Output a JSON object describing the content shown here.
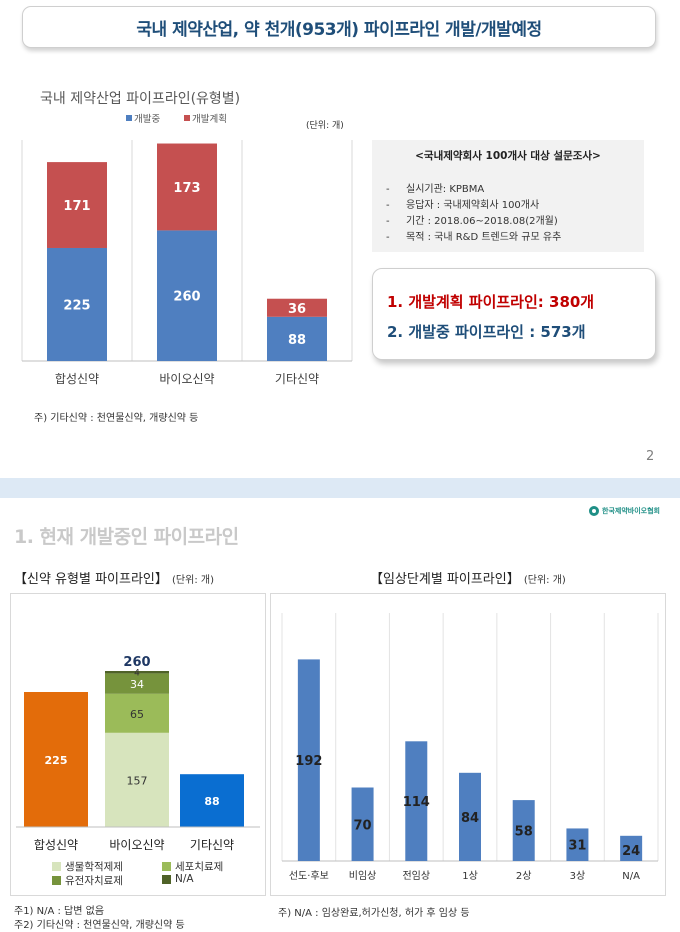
{
  "slide1": {
    "title": "국내 제약산업, 약 천개(953개) 파이프라인 개발/개발예정",
    "chart_title": "국내 제약산업 파이프라인(유형별)",
    "legend": [
      "개발중",
      "개발계획"
    ],
    "unit": "(단위: 개)",
    "note": "주) 기타신약 : 천연물신약, 개량신약 등",
    "survey": {
      "title": "<국내제약회사 100개사 대상 설문조사>",
      "items": [
        "실시기관: KPBMA",
        "응답자 : 국내제약회사 100개사",
        "기간 : 2018.06~2018.08(2개월)",
        "목적 : 국내 R&D 트렌드와 규모 유추"
      ],
      "dash": "-"
    },
    "summary": {
      "line1": "1. 개발계획 파이프라인: 380개",
      "line2": "2. 개발중 파이프라인 : 573개"
    },
    "page_number": "2"
  },
  "slide2": {
    "logo_text": "한국제약바이오협회",
    "section_heading": "1. 현재 개발중인 파이프라인",
    "left_title": "【신약 유형별 파이프라인】",
    "left_unit": "(단위: 개)",
    "right_title": "【임상단계별 파이프라인】",
    "right_unit": "(단위: 개)",
    "legend": [
      "생물학적제제",
      "세포치료제",
      "유전자치료제",
      "N/A"
    ],
    "footnotes": {
      "f1": "주1) N/A : 답변 없음",
      "f2": "주2) 기타신약 : 천연물신약, 개량신약 등",
      "f3": "주) N/A : 임상완료,허가신청, 허가 후 임상 등"
    }
  },
  "colors": {
    "blue": "#4f7fc0",
    "red": "#c55050",
    "orange": "#e36c0a",
    "bright_blue": "#0a6ed1",
    "bio_light": "#d7e4bd",
    "bio_mid": "#9bbb59",
    "bio_dark": "#76933c",
    "bio_darkest": "#4f6228",
    "title_navy": "#1f4e79",
    "summary_red": "#c00000"
  },
  "chart_data": [
    {
      "type": "bar",
      "stacked": true,
      "title": "국내 제약산업 파이프라인(유형별)",
      "categories": [
        "합성신약",
        "바이오신약",
        "기타신약"
      ],
      "series": [
        {
          "name": "개발중",
          "values": [
            225,
            260,
            88
          ]
        },
        {
          "name": "개발계획",
          "values": [
            171,
            173,
            36
          ]
        }
      ],
      "ylim": [
        0,
        440
      ],
      "grid": "vertical",
      "legend": "top-left"
    },
    {
      "type": "bar",
      "stacked": true,
      "categories": [
        "합성신약",
        "바이오신약",
        "기타신약"
      ],
      "totals": [
        "",
        "260",
        ""
      ],
      "series": [
        {
          "name": "합성신약",
          "values": [
            225,
            0,
            0
          ]
        },
        {
          "name": "생물학적제제",
          "values": [
            0,
            157,
            0
          ]
        },
        {
          "name": "세포치료제",
          "values": [
            0,
            65,
            0
          ]
        },
        {
          "name": "유전자치료제",
          "values": [
            0,
            34,
            0
          ]
        },
        {
          "name": "N/A",
          "values": [
            0,
            4,
            0
          ]
        },
        {
          "name": "기타신약",
          "values": [
            0,
            0,
            88
          ]
        }
      ],
      "ylim": [
        0,
        320
      ],
      "legend": "bottom"
    },
    {
      "type": "bar",
      "title": "【임상단계별 파이프라인】",
      "categories": [
        "선도·후보",
        "비임상",
        "전임상",
        "1상",
        "2상",
        "3상",
        "N/A"
      ],
      "values": [
        192,
        70,
        114,
        84,
        58,
        31,
        24
      ],
      "ylim": [
        0,
        240
      ],
      "grid": "vertical"
    }
  ]
}
